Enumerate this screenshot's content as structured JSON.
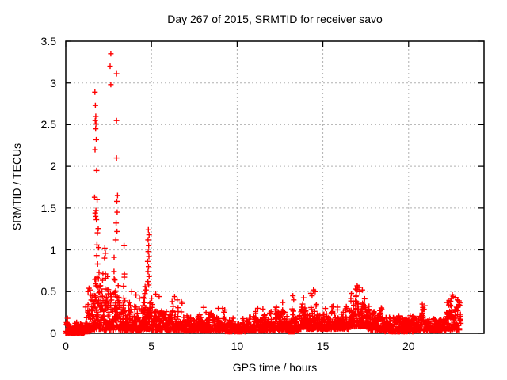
{
  "chart_data": {
    "type": "scatter",
    "title": "Day 267 of 2015, SRMTID for receiver savo",
    "xlabel": "GPS time / hours",
    "ylabel": "SRMTID / TECUs",
    "xlim": [
      0,
      24.4
    ],
    "ylim": [
      0,
      3.5
    ],
    "xticks": [
      "0",
      "5",
      "10",
      "15",
      "20"
    ],
    "yticks": [
      "0",
      "0.5",
      "1",
      "1.5",
      "2",
      "2.5",
      "3",
      "3.5"
    ],
    "grid": true,
    "legend": "none",
    "marker": "plus",
    "color": "#ff0000",
    "grid_color": "#b0b0b0",
    "border_color": "#000000",
    "seed": 20150267,
    "baseline_bins": [
      {
        "x0": 0.0,
        "x1": 0.12,
        "lo": 0.0,
        "hi": 0.28,
        "per_hour": 140
      },
      {
        "x0": 0.12,
        "x1": 1.15,
        "lo": 0.0,
        "hi": 0.16,
        "per_hour": 115
      },
      {
        "x0": 1.15,
        "x1": 1.5,
        "lo": 0.02,
        "hi": 0.46,
        "per_hour": 115
      },
      {
        "x0": 1.5,
        "x1": 1.7,
        "lo": 0.04,
        "hi": 0.8,
        "per_hour": 130
      },
      {
        "x0": 1.7,
        "x1": 1.95,
        "lo": 0.05,
        "hi": 1.3,
        "per_hour": 170
      },
      {
        "x0": 1.95,
        "x1": 2.15,
        "lo": 0.05,
        "hi": 0.7,
        "per_hour": 130
      },
      {
        "x0": 2.15,
        "x1": 2.45,
        "lo": 0.04,
        "hi": 0.95,
        "per_hour": 130
      },
      {
        "x0": 2.45,
        "x1": 2.8,
        "lo": 0.04,
        "hi": 0.6,
        "per_hour": 115
      },
      {
        "x0": 2.8,
        "x1": 3.1,
        "lo": 0.05,
        "hi": 1.05,
        "per_hour": 140
      },
      {
        "x0": 3.1,
        "x1": 3.3,
        "lo": 0.04,
        "hi": 0.5,
        "per_hour": 115
      },
      {
        "x0": 3.3,
        "x1": 3.5,
        "lo": 0.04,
        "hi": 1.0,
        "per_hour": 130
      },
      {
        "x0": 3.5,
        "x1": 4.4,
        "lo": 0.03,
        "hi": 0.38,
        "per_hour": 110
      },
      {
        "x0": 4.4,
        "x1": 4.6,
        "lo": 0.04,
        "hi": 0.5,
        "per_hour": 115
      },
      {
        "x0": 4.6,
        "x1": 4.95,
        "lo": 0.05,
        "hi": 0.55,
        "per_hour": 130
      },
      {
        "x0": 4.95,
        "x1": 5.6,
        "lo": 0.04,
        "hi": 0.45,
        "per_hour": 110
      },
      {
        "x0": 5.6,
        "x1": 6.8,
        "lo": 0.04,
        "hi": 0.38,
        "per_hour": 110
      },
      {
        "x0": 6.8,
        "x1": 9.3,
        "lo": 0.03,
        "hi": 0.28,
        "per_hour": 105
      },
      {
        "x0": 9.3,
        "x1": 10.5,
        "lo": 0.02,
        "hi": 0.18,
        "per_hour": 105
      },
      {
        "x0": 10.5,
        "x1": 12.2,
        "lo": 0.03,
        "hi": 0.26,
        "per_hour": 105
      },
      {
        "x0": 12.2,
        "x1": 12.95,
        "lo": 0.04,
        "hi": 0.34,
        "per_hour": 105
      },
      {
        "x0": 12.95,
        "x1": 13.6,
        "lo": 0.03,
        "hi": 0.32,
        "per_hour": 105
      },
      {
        "x0": 13.6,
        "x1": 14.7,
        "lo": 0.05,
        "hi": 0.5,
        "per_hour": 110
      },
      {
        "x0": 14.7,
        "x1": 15.5,
        "lo": 0.05,
        "hi": 0.35,
        "per_hour": 110
      },
      {
        "x0": 15.5,
        "x1": 16.6,
        "lo": 0.05,
        "hi": 0.4,
        "per_hour": 110
      },
      {
        "x0": 16.6,
        "x1": 17.6,
        "lo": 0.08,
        "hi": 0.55,
        "per_hour": 125
      },
      {
        "x0": 17.6,
        "x1": 18.6,
        "lo": 0.04,
        "hi": 0.38,
        "per_hour": 110
      },
      {
        "x0": 18.6,
        "x1": 20.3,
        "lo": 0.02,
        "hi": 0.22,
        "per_hour": 105
      },
      {
        "x0": 20.3,
        "x1": 21.3,
        "lo": 0.03,
        "hi": 0.33,
        "per_hour": 105
      },
      {
        "x0": 21.3,
        "x1": 22.2,
        "lo": 0.03,
        "hi": 0.22,
        "per_hour": 105
      },
      {
        "x0": 22.2,
        "x1": 23.05,
        "lo": 0.04,
        "hi": 0.46,
        "per_hour": 115
      }
    ],
    "spikes": [
      [
        1.7,
        2.89
      ],
      [
        1.73,
        2.73
      ],
      [
        1.75,
        2.6
      ],
      [
        1.72,
        2.55
      ],
      [
        1.76,
        2.51
      ],
      [
        1.74,
        2.45
      ],
      [
        1.78,
        2.32
      ],
      [
        1.71,
        2.2
      ],
      [
        1.8,
        1.95
      ],
      [
        1.68,
        1.63
      ],
      [
        1.83,
        1.6
      ],
      [
        1.76,
        1.47
      ],
      [
        1.74,
        1.4
      ],
      [
        1.79,
        1.36
      ],
      [
        1.72,
        1.44
      ],
      [
        1.3,
        0.5
      ],
      [
        1.36,
        0.54
      ],
      [
        1.42,
        0.52
      ],
      [
        2.28,
        1.02
      ],
      [
        2.31,
        0.96
      ],
      [
        2.26,
        0.9
      ],
      [
        2.63,
        3.35
      ],
      [
        2.59,
        3.2
      ],
      [
        2.96,
        3.11
      ],
      [
        2.63,
        2.98
      ],
      [
        2.96,
        2.55
      ],
      [
        2.96,
        2.1
      ],
      [
        3.02,
        1.65
      ],
      [
        2.98,
        1.58
      ],
      [
        3.0,
        1.45
      ],
      [
        2.94,
        1.32
      ],
      [
        2.99,
        1.22
      ],
      [
        2.92,
        1.12
      ],
      [
        3.4,
        1.05
      ],
      [
        3.85,
        0.5
      ],
      [
        4.1,
        0.46
      ],
      [
        4.3,
        0.42
      ],
      [
        4.82,
        1.24
      ],
      [
        4.86,
        1.18
      ],
      [
        4.8,
        1.12
      ],
      [
        4.84,
        1.05
      ],
      [
        4.81,
        0.98
      ],
      [
        4.85,
        0.92
      ],
      [
        4.78,
        0.86
      ],
      [
        4.83,
        0.8
      ],
      [
        4.8,
        0.74
      ],
      [
        4.86,
        0.68
      ],
      [
        4.79,
        0.62
      ],
      [
        4.84,
        0.58
      ],
      [
        4.63,
        0.56
      ],
      [
        4.68,
        0.52
      ],
      [
        5.25,
        0.47
      ],
      [
        5.45,
        0.44
      ],
      [
        6.35,
        0.44
      ],
      [
        6.5,
        0.4
      ],
      [
        8.05,
        0.31
      ],
      [
        8.9,
        0.3
      ],
      [
        9.15,
        0.3
      ],
      [
        11.2,
        0.3
      ],
      [
        11.5,
        0.29
      ],
      [
        12.65,
        0.37
      ],
      [
        13.25,
        0.45
      ],
      [
        13.3,
        0.4
      ],
      [
        14.45,
        0.52
      ],
      [
        14.55,
        0.5
      ],
      [
        14.3,
        0.48
      ],
      [
        17.0,
        0.57
      ],
      [
        17.1,
        0.55
      ],
      [
        16.9,
        0.53
      ],
      [
        17.3,
        0.52
      ],
      [
        17.15,
        0.5
      ],
      [
        20.8,
        0.35
      ],
      [
        20.95,
        0.33
      ],
      [
        22.55,
        0.46
      ],
      [
        22.6,
        0.44
      ],
      [
        22.75,
        0.43
      ],
      [
        22.5,
        0.42
      ],
      [
        22.85,
        0.4
      ]
    ],
    "special_point": {
      "x": 13.18,
      "y": 0.03,
      "marker": "filled-square"
    }
  }
}
